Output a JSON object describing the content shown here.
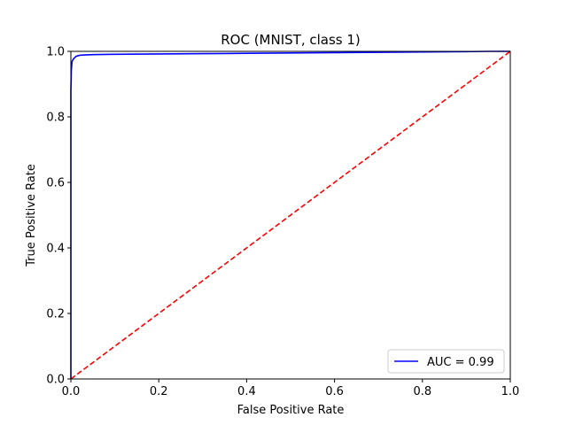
{
  "chart_data": {
    "type": "line",
    "title": "ROC (MNIST, class 1)",
    "xlabel": "False Positive Rate",
    "ylabel": "True Positive Rate",
    "xlim": [
      0,
      1
    ],
    "ylim": [
      0,
      1
    ],
    "x_ticks": [
      "0.0",
      "0.2",
      "0.4",
      "0.6",
      "0.8",
      "1.0"
    ],
    "y_ticks": [
      "0.0",
      "0.2",
      "0.4",
      "0.6",
      "0.8",
      "1.0"
    ],
    "grid": false,
    "legend_position": "lower-right",
    "series": [
      {
        "name": "AUC = 0.99",
        "color": "#0000ff",
        "style": "solid",
        "x": [
          0,
          0,
          0.001,
          0.002,
          0.003,
          0.005,
          0.008,
          0.012,
          0.02,
          0.03,
          0.05,
          0.1,
          0.2,
          0.3,
          0.4,
          0.5,
          0.6,
          0.7,
          0.8,
          0.9,
          0.95,
          1.0
        ],
        "y": [
          0,
          0.88,
          0.94,
          0.96,
          0.97,
          0.975,
          0.98,
          0.985,
          0.988,
          0.989,
          0.99,
          0.991,
          0.992,
          0.993,
          0.994,
          0.995,
          0.996,
          0.997,
          0.998,
          0.999,
          1.0,
          1.0
        ]
      },
      {
        "name": "",
        "color": "#ff0000",
        "style": "dashed",
        "x": [
          0,
          1
        ],
        "y": [
          0,
          1
        ]
      }
    ]
  }
}
